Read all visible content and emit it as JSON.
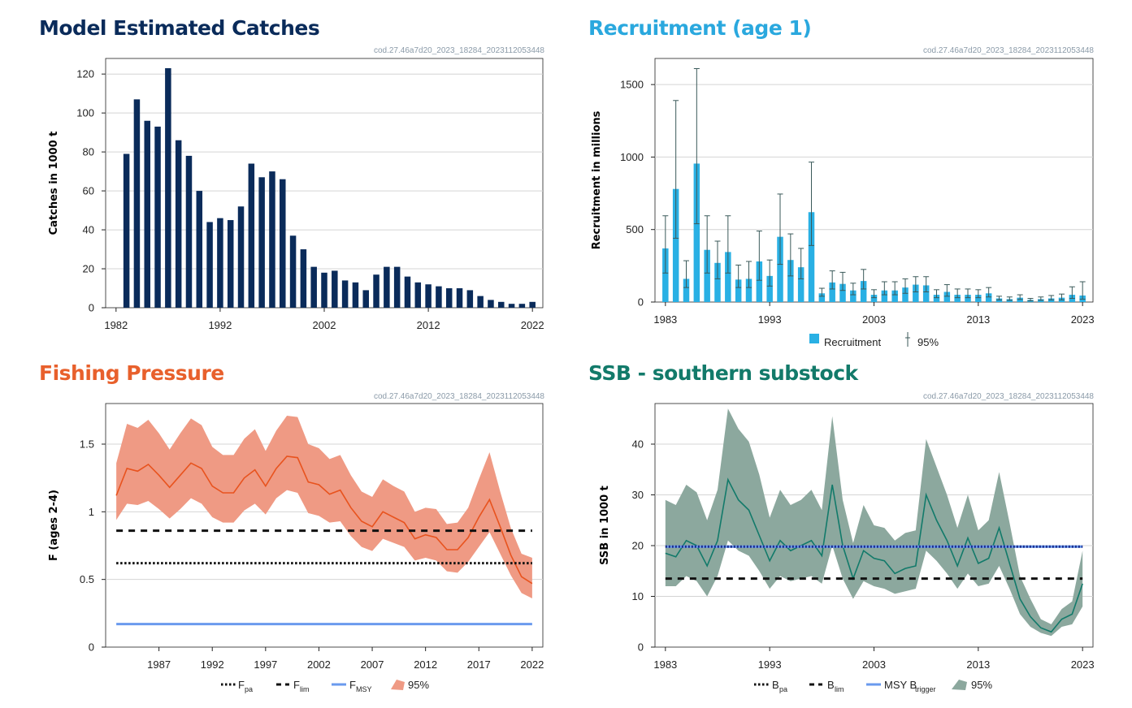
{
  "panels": {
    "catches": {
      "title": "Model Estimated Catches",
      "title_color": "#0a2b5a",
      "ref": "cod.27.46a7d20_2023_18284_2023112053448"
    },
    "recruitment": {
      "title": "Recruitment (age 1)",
      "title_color": "#2aa8de",
      "ref": "cod.27.46a7d20_2023_18284_2023112053448"
    },
    "fishing": {
      "title": "Fishing Pressure",
      "title_color": "#e8602c",
      "ref": "cod.27.46a7d20_2023_18284_2023112053448"
    },
    "ssb": {
      "title": "SSB - southern substock",
      "title_color": "#127a6a",
      "ref": "cod.27.46a7d20_2023_18284_2023112053448"
    }
  },
  "colors": {
    "catch_bar": "#0a2b5a",
    "recruit_bar": "#29b0e4",
    "recruit_err": "#3b5a5a",
    "f_line": "#e8531e",
    "f_band": "#ef9a84",
    "ref_blue": "#6a9aee",
    "ssb_line": "#127a6a",
    "ssb_band": "#8ca89e",
    "ssb_bpa": "#1a2a8a"
  },
  "chart_data": [
    {
      "type": "bar",
      "ylabel": "Catches in 1000 t",
      "ylim": [
        0,
        128
      ],
      "yticks": [
        0,
        20,
        40,
        60,
        80,
        100,
        120
      ],
      "xlim": [
        1981,
        2023
      ],
      "xticks": [
        1982,
        1992,
        2002,
        2012,
        2022
      ],
      "x": [
        1983,
        1984,
        1985,
        1986,
        1987,
        1988,
        1989,
        1990,
        1991,
        1992,
        1993,
        1994,
        1995,
        1996,
        1997,
        1998,
        1999,
        2000,
        2001,
        2002,
        2003,
        2004,
        2005,
        2006,
        2007,
        2008,
        2009,
        2010,
        2011,
        2012,
        2013,
        2014,
        2015,
        2016,
        2017,
        2018,
        2019,
        2020,
        2021,
        2022
      ],
      "values": [
        79,
        107,
        96,
        93,
        123,
        86,
        78,
        60,
        44,
        46,
        45,
        52,
        74,
        67,
        70,
        66,
        37,
        30,
        21,
        18,
        19,
        14,
        13,
        9,
        17,
        21,
        21,
        16,
        13,
        12,
        11,
        10,
        10,
        9,
        6,
        4,
        3,
        2,
        2,
        3
      ],
      "grid": true
    },
    {
      "type": "bar",
      "ylabel": "Recruitment in millions",
      "ylim": [
        0,
        1680
      ],
      "yticks": [
        0,
        500,
        1000,
        1500
      ],
      "xlim": [
        1982,
        2024
      ],
      "xticks": [
        1983,
        1993,
        2003,
        2013,
        2023
      ],
      "legend": {
        "position": "bottom",
        "bar_label": "Recruitment",
        "ci_label": "95%"
      },
      "x": [
        1983,
        1984,
        1985,
        1986,
        1987,
        1988,
        1989,
        1990,
        1991,
        1992,
        1993,
        1994,
        1995,
        1996,
        1997,
        1998,
        1999,
        2000,
        2001,
        2002,
        2003,
        2004,
        2005,
        2006,
        2007,
        2008,
        2009,
        2010,
        2011,
        2012,
        2013,
        2014,
        2015,
        2016,
        2017,
        2018,
        2019,
        2020,
        2021,
        2022,
        2023
      ],
      "values": [
        370,
        780,
        160,
        955,
        360,
        270,
        345,
        155,
        160,
        280,
        180,
        450,
        290,
        240,
        620,
        60,
        135,
        125,
        80,
        145,
        50,
        80,
        80,
        100,
        120,
        115,
        50,
        70,
        50,
        50,
        50,
        60,
        25,
        20,
        30,
        15,
        20,
        25,
        30,
        50,
        45
      ],
      "lower": [
        200,
        440,
        100,
        540,
        200,
        160,
        200,
        100,
        100,
        150,
        110,
        260,
        180,
        160,
        390,
        40,
        90,
        80,
        50,
        90,
        30,
        50,
        50,
        60,
        70,
        70,
        30,
        40,
        30,
        30,
        30,
        35,
        15,
        12,
        18,
        8,
        12,
        15,
        15,
        25,
        20
      ],
      "upper": [
        595,
        1390,
        285,
        1610,
        595,
        420,
        595,
        255,
        280,
        490,
        290,
        745,
        470,
        370,
        965,
        95,
        215,
        205,
        130,
        225,
        85,
        140,
        140,
        160,
        175,
        175,
        85,
        120,
        90,
        90,
        85,
        100,
        40,
        35,
        50,
        25,
        35,
        45,
        55,
        105,
        140
      ],
      "grid": true
    },
    {
      "type": "line",
      "ylabel": "F (ages 2-4)",
      "ylim": [
        0,
        1.8
      ],
      "yticks": [
        0,
        0.5,
        1,
        1.5
      ],
      "ytick_labels": [
        "0",
        "0.5",
        "1",
        "1.5"
      ],
      "xlim": [
        1982,
        2023
      ],
      "xticks": [
        1987,
        1992,
        1997,
        2002,
        2007,
        2012,
        2017,
        2022
      ],
      "legend": {
        "position": "bottom",
        "items": [
          "F",
          "F",
          "F",
          "95%"
        ],
        "subscripts": [
          "pa",
          "lim",
          "MSY",
          ""
        ]
      },
      "x": [
        1983,
        1984,
        1985,
        1986,
        1987,
        1988,
        1989,
        1990,
        1991,
        1992,
        1993,
        1994,
        1995,
        1996,
        1997,
        1998,
        1999,
        2000,
        2001,
        2002,
        2003,
        2004,
        2005,
        2006,
        2007,
        2008,
        2009,
        2010,
        2011,
        2012,
        2013,
        2014,
        2015,
        2016,
        2017,
        2018,
        2019,
        2020,
        2021,
        2022
      ],
      "values": [
        1.12,
        1.32,
        1.3,
        1.35,
        1.27,
        1.18,
        1.27,
        1.36,
        1.32,
        1.19,
        1.14,
        1.14,
        1.25,
        1.31,
        1.19,
        1.32,
        1.41,
        1.4,
        1.22,
        1.2,
        1.13,
        1.16,
        1.03,
        0.93,
        0.89,
        1.0,
        0.96,
        0.92,
        0.8,
        0.83,
        0.81,
        0.72,
        0.72,
        0.81,
        0.96,
        1.09,
        0.89,
        0.68,
        0.52,
        0.47
      ],
      "lower": [
        0.94,
        1.06,
        1.05,
        1.08,
        1.02,
        0.95,
        1.02,
        1.1,
        1.06,
        0.96,
        0.92,
        0.92,
        1.01,
        1.06,
        0.98,
        1.1,
        1.16,
        1.14,
        0.99,
        0.97,
        0.92,
        0.93,
        0.82,
        0.74,
        0.71,
        0.8,
        0.77,
        0.74,
        0.64,
        0.66,
        0.64,
        0.56,
        0.55,
        0.63,
        0.74,
        0.85,
        0.69,
        0.53,
        0.4,
        0.36
      ],
      "upper": [
        1.36,
        1.65,
        1.62,
        1.68,
        1.58,
        1.46,
        1.58,
        1.69,
        1.64,
        1.48,
        1.42,
        1.42,
        1.54,
        1.61,
        1.45,
        1.6,
        1.71,
        1.7,
        1.5,
        1.47,
        1.39,
        1.42,
        1.27,
        1.15,
        1.11,
        1.24,
        1.19,
        1.15,
        1.0,
        1.03,
        1.02,
        0.91,
        0.92,
        1.03,
        1.24,
        1.44,
        1.15,
        0.88,
        0.69,
        0.66
      ],
      "reference": {
        "Fpa": 0.62,
        "Flim": 0.86,
        "FMSY": 0.17
      },
      "grid": true
    },
    {
      "type": "line",
      "ylabel": "SSB in 1000 t",
      "ylim": [
        0,
        48
      ],
      "yticks": [
        0,
        10,
        20,
        30,
        40
      ],
      "xlim": [
        1982,
        2024
      ],
      "xticks": [
        1983,
        1993,
        2003,
        2013,
        2023
      ],
      "legend": {
        "position": "bottom",
        "items": [
          "B",
          "B",
          "MSY B",
          "95%"
        ],
        "subscripts": [
          "pa",
          "lim",
          "trigger",
          ""
        ]
      },
      "x": [
        1983,
        1984,
        1985,
        1986,
        1987,
        1988,
        1989,
        1990,
        1991,
        1992,
        1993,
        1994,
        1995,
        1996,
        1997,
        1998,
        1999,
        2000,
        2001,
        2002,
        2003,
        2004,
        2005,
        2006,
        2007,
        2008,
        2009,
        2010,
        2011,
        2012,
        2013,
        2014,
        2015,
        2016,
        2017,
        2018,
        2019,
        2020,
        2021,
        2022,
        2023
      ],
      "values": [
        18.5,
        17.8,
        21.0,
        20.0,
        16.0,
        21.0,
        33.0,
        29.0,
        27.0,
        22.0,
        17.0,
        21.0,
        19.0,
        20.0,
        21.0,
        18.0,
        32.0,
        20.0,
        13.5,
        19.0,
        17.5,
        17.0,
        14.5,
        15.5,
        16.0,
        30.0,
        25.0,
        21.0,
        16.0,
        21.5,
        16.5,
        17.5,
        23.5,
        16.5,
        9.5,
        6.0,
        3.8,
        3.0,
        5.5,
        6.5,
        12.5
      ],
      "lower": [
        12.0,
        12.0,
        14.0,
        13.0,
        10.0,
        14.0,
        21.0,
        19.0,
        18.0,
        15.0,
        11.5,
        14.0,
        13.0,
        13.5,
        14.0,
        12.5,
        20.0,
        13.5,
        9.5,
        13.0,
        12.0,
        11.5,
        10.5,
        11.0,
        11.5,
        19.0,
        17.0,
        14.5,
        11.5,
        14.5,
        12.0,
        12.5,
        16.0,
        11.5,
        6.5,
        4.0,
        2.8,
        2.2,
        4.0,
        4.5,
        8.0
      ],
      "upper": [
        29.0,
        28.0,
        32.0,
        30.5,
        25.0,
        31.0,
        47.0,
        43.0,
        40.5,
        34.0,
        25.5,
        31.0,
        28.0,
        29.0,
        31.0,
        27.0,
        45.5,
        29.0,
        20.5,
        28.0,
        24.0,
        23.5,
        21.0,
        22.5,
        23.0,
        41.0,
        35.5,
        30.0,
        23.5,
        30.0,
        23.0,
        25.0,
        34.5,
        24.5,
        14.0,
        9.5,
        5.5,
        4.5,
        7.5,
        9.0,
        19.0
      ],
      "reference": {
        "Bpa": 19.8,
        "Blim": 13.5,
        "MSY_Btrigger": 19.8
      },
      "grid": true
    }
  ]
}
